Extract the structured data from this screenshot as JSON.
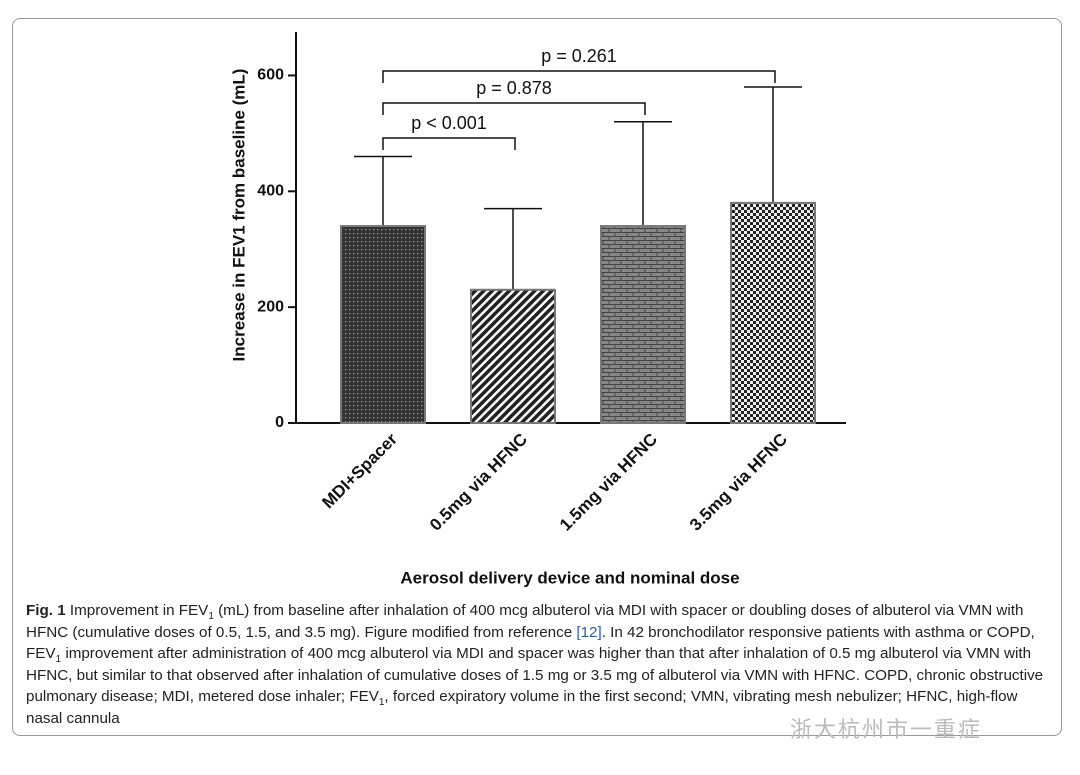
{
  "chart_data": {
    "type": "bar",
    "y_label": "Increase in FEV1 from baseline (mL)",
    "x_label": "Aerosol delivery device and nominal dose",
    "categories": [
      "MDI+Spacer",
      "0.5mg via HFNC",
      "1.5mg via HFNC",
      "3.5mg via HFNC"
    ],
    "values": [
      340,
      230,
      340,
      380
    ],
    "errors": [
      120,
      140,
      180,
      200
    ],
    "patterns": [
      "dots",
      "hatch",
      "brick",
      "checker"
    ],
    "annotations": [
      "p < 0.001",
      "p = 0.878",
      "p = 0.261"
    ],
    "ylim": [
      0,
      675
    ],
    "yticks": [
      0,
      200,
      400,
      600
    ]
  },
  "caption": {
    "label": "Fig. 1",
    "runs": [
      {
        "text": " Improvement in FEV",
        "kind": "text"
      },
      {
        "text": "1",
        "kind": "sub"
      },
      {
        "text": " (mL) from baseline after inhalation of 400 mcg albuterol via MDI with spacer or doubling doses of albuterol via VMN with HFNC (cumulative doses of 0.5, 1.5, and 3.5 mg). Figure modified from reference ",
        "kind": "text"
      },
      {
        "text": "[12]",
        "kind": "link"
      },
      {
        "text": ". In 42 bronchodilator responsive patients with asthma or COPD, FEV",
        "kind": "text"
      },
      {
        "text": "1",
        "kind": "sub"
      },
      {
        "text": " improvement after administration of 400 mcg albuterol via MDI and spacer was higher than that after inhalation of 0.5 mg albuterol via VMN with HFNC, but similar to that observed after inhalation of cumulative doses of 1.5 mg or 3.5 mg of albuterol via VMN with HFNC. COPD, chronic obstructive pulmonary disease; MDI, metered dose inhaler; FEV",
        "kind": "text"
      },
      {
        "text": "1",
        "kind": "sub"
      },
      {
        "text": ", forced expiratory volume in the first second; VMN, vibrating mesh nebulizer; HFNC, high-flow nasal cannula",
        "kind": "text"
      }
    ]
  },
  "watermark": "浙大杭州市一重症"
}
